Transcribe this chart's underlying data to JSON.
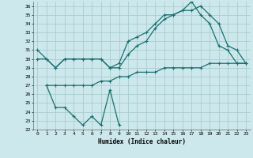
{
  "xlabel": "Humidex (Indice chaleur)",
  "bg_color": "#cce8ec",
  "grid_color": "#aacccc",
  "line_color": "#1a7070",
  "xlim": [
    -0.5,
    23.5
  ],
  "ylim": [
    22,
    36.5
  ],
  "yticks": [
    22,
    23,
    24,
    25,
    26,
    27,
    28,
    29,
    30,
    31,
    32,
    33,
    34,
    35,
    36
  ],
  "xticks": [
    0,
    1,
    2,
    3,
    4,
    5,
    6,
    7,
    8,
    9,
    10,
    11,
    12,
    13,
    14,
    15,
    16,
    17,
    18,
    19,
    20,
    21,
    22,
    23
  ],
  "line1_x": [
    0,
    1,
    2,
    3,
    4,
    5,
    6,
    7,
    8,
    9,
    10,
    11,
    12,
    13,
    14,
    15,
    16,
    17,
    18,
    19,
    20,
    21,
    22,
    23
  ],
  "line1_y": [
    31,
    30,
    29,
    30,
    30,
    30,
    30,
    30,
    29,
    29,
    30.5,
    31.5,
    32,
    33.5,
    34.5,
    35,
    35.5,
    35.5,
    36,
    35,
    34,
    31.5,
    31,
    29.5
  ],
  "line2_x": [
    0,
    1,
    2,
    3,
    4,
    5,
    6,
    7,
    8,
    9,
    10,
    11,
    12,
    13,
    14,
    15,
    16,
    17,
    18,
    19,
    20,
    21,
    22,
    23
  ],
  "line2_y": [
    30,
    30,
    29,
    30,
    30,
    30,
    30,
    30,
    29,
    29.5,
    32,
    32.5,
    33,
    34,
    35,
    35,
    35.5,
    36.5,
    35,
    34,
    31.5,
    31,
    29.5,
    29.5
  ],
  "line3_x": [
    1,
    2,
    3,
    4,
    5,
    6,
    7,
    8,
    9,
    10,
    11,
    12,
    13,
    14,
    15,
    16,
    17,
    18,
    19,
    20,
    21,
    22,
    23
  ],
  "line3_y": [
    27,
    27,
    27,
    27,
    27,
    27,
    27.5,
    27.5,
    28,
    28,
    28.5,
    28.5,
    28.5,
    29,
    29,
    29,
    29,
    29,
    29.5,
    29.5,
    29.5,
    29.5,
    29.5
  ],
  "line4_x": [
    1,
    2,
    3,
    4,
    5,
    6,
    7,
    8,
    9
  ],
  "line4_y": [
    27,
    24.5,
    24.5,
    23.5,
    22.5,
    23.5,
    22.5,
    26.5,
    22.5
  ]
}
